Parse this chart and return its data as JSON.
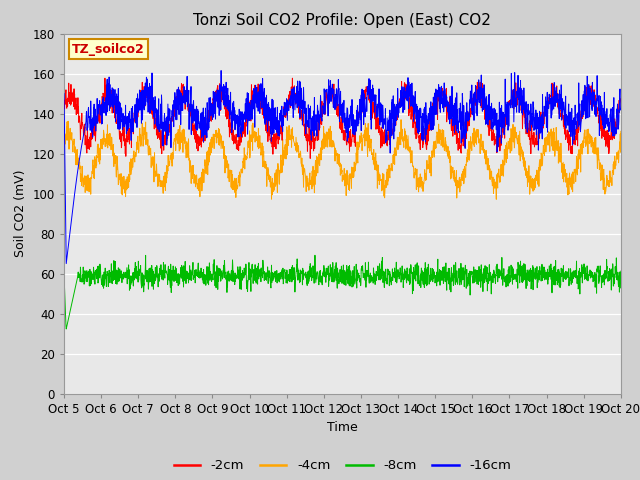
{
  "title": "Tonzi Soil CO2 Profile: Open (East) CO2",
  "ylabel": "Soil CO2 (mV)",
  "xlabel": "Time",
  "ylim": [
    0,
    180
  ],
  "yticks": [
    0,
    20,
    40,
    60,
    80,
    100,
    120,
    140,
    160,
    180
  ],
  "xtick_labels": [
    "Oct 5",
    "Oct 6",
    "Oct 7",
    "Oct 8",
    "Oct 9",
    "Oct 10",
    "Oct 11",
    "Oct 12",
    "Oct 13",
    "Oct 14",
    "Oct 15",
    "Oct 16",
    "Oct 17",
    "Oct 18",
    "Oct 19",
    "Oct 20"
  ],
  "n_points": 2000,
  "colors": {
    "red": "#ff0000",
    "orange": "#ffa500",
    "green": "#00bb00",
    "blue": "#0000ff"
  },
  "legend_labels": [
    "-2cm",
    "-4cm",
    "-8cm",
    "-16cm"
  ],
  "watermark_text": "TZ_soilco2",
  "watermark_bg": "#ffffcc",
  "watermark_border": "#cc8800",
  "fig_bg": "#d0d0d0",
  "plot_bg": "#e8e8e8",
  "title_fontsize": 11,
  "axis_fontsize": 9,
  "tick_fontsize": 8.5
}
